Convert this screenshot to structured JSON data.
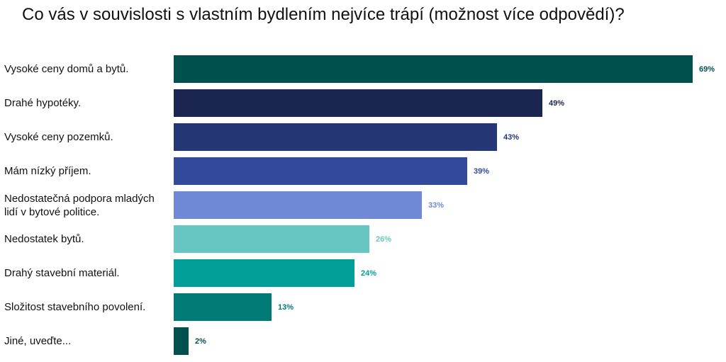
{
  "title": "Co vás v souvislosti s vlastním bydlením nejvíce trápí (možnost více odpovědí)?",
  "chart_data": {
    "type": "bar",
    "orientation": "horizontal",
    "title": "Co vás v souvislosti s vlastním bydlením nejvíce trápí (možnost více odpovědí)?",
    "xlabel": "",
    "ylabel": "",
    "xlim": [
      0,
      69
    ],
    "grid": false,
    "unit": "%",
    "categories": [
      "Vysoké ceny domů a bytů.",
      "Drahé hypotéky.",
      "Vysoké ceny pozemků.",
      "Mám nízký příjem.",
      "Nedostatečná podpora mladých lidí v bytové politice.",
      "Nedostatek bytů.",
      "Drahý stavební materiál.",
      "Složitost stavebního povolení.",
      "Jiné, uveďte..."
    ],
    "values": [
      69,
      49,
      43,
      39,
      33,
      26,
      24,
      13,
      2
    ],
    "value_labels": [
      "69%",
      "49%",
      "43%",
      "39%",
      "33%",
      "26%",
      "24%",
      "13%",
      "2%"
    ],
    "colors": [
      "#00504f",
      "#1b2552",
      "#253675",
      "#33499c",
      "#7089d6",
      "#68c6c2",
      "#009d99",
      "#007a74",
      "#00504f"
    ]
  }
}
